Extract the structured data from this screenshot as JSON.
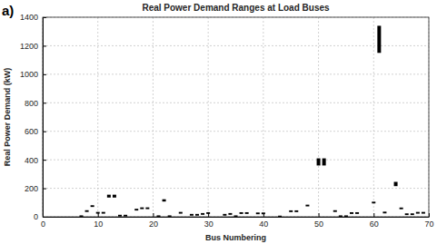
{
  "chart_data": {
    "type": "range",
    "title": "Real Power Demand Ranges at Load Buses",
    "annotations": [
      "a)"
    ],
    "x_label": "Bus Numbering",
    "y_label": "Real Power Demand (kW)",
    "x": [
      7,
      8,
      9,
      10,
      11,
      12,
      13,
      14,
      15,
      17,
      18,
      19,
      21,
      22,
      23,
      25,
      27,
      28,
      29,
      30,
      33,
      34,
      35,
      36,
      37,
      39,
      40,
      43,
      45,
      46,
      48,
      50,
      51,
      53,
      54,
      55,
      56,
      57,
      60,
      61,
      62,
      64,
      65,
      66,
      67,
      68,
      69
    ],
    "low": [
      0,
      34,
      69,
      22,
      22,
      135,
      135,
      2,
      2,
      44,
      54,
      54,
      0,
      107,
      0,
      22,
      8,
      8,
      14,
      20,
      8,
      14,
      0,
      20,
      20,
      18,
      18,
      0,
      33,
      33,
      73,
      360,
      360,
      34,
      0,
      0,
      20,
      20,
      94,
      1150,
      24,
      215,
      53,
      12,
      12,
      22,
      22
    ],
    "high": [
      10,
      46,
      81,
      34,
      34,
      155,
      155,
      14,
      14,
      56,
      66,
      66,
      10,
      123,
      10,
      34,
      20,
      20,
      26,
      32,
      20,
      26,
      10,
      32,
      32,
      30,
      30,
      8,
      45,
      45,
      85,
      410,
      410,
      46,
      10,
      10,
      32,
      32,
      106,
      1340,
      36,
      245,
      65,
      24,
      24,
      34,
      34
    ],
    "color": "#000000",
    "xlim": [
      0,
      70
    ],
    "xticks": [
      0,
      10,
      20,
      30,
      40,
      50,
      60,
      70
    ],
    "ylim": [
      0,
      1400
    ],
    "yticks": [
      0,
      200,
      400,
      600,
      800,
      1000,
      1200,
      1400
    ],
    "grid": true
  }
}
